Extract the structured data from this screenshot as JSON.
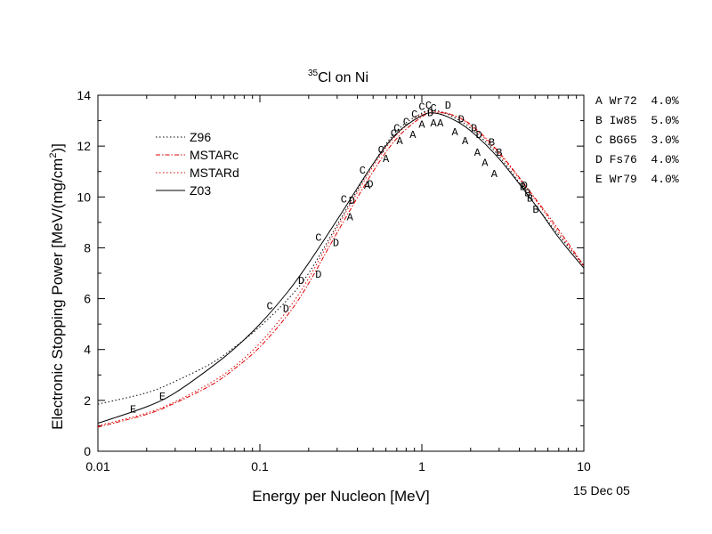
{
  "chart_data": {
    "type": "line",
    "title": {
      "superscript": "35",
      "text": "Cl on Ni"
    },
    "xlabel": "Energy per Nucleon [MeV]",
    "ylabel": {
      "main": "Electronic Stopping Power [MeV/(mg/cm",
      "sup": "2",
      "tail": ")]"
    },
    "xscale": "log",
    "xlim": [
      0.01,
      10
    ],
    "ylim": [
      0,
      14
    ],
    "x_ticks": [
      0.01,
      0.1,
      1,
      10
    ],
    "x_tick_labels": [
      "0.01",
      "0.1",
      "1",
      "10"
    ],
    "y_ticks": [
      0,
      2,
      4,
      6,
      8,
      10,
      12,
      14
    ],
    "y_tick_labels": [
      "0",
      "2",
      "4",
      "6",
      "8",
      "10",
      "12",
      "14"
    ],
    "grid": false,
    "legend_placement": "upper-left",
    "series": [
      {
        "name": "Z96",
        "style": "dotted",
        "color": "#000000",
        "x": [
          0.01,
          0.02,
          0.03,
          0.05,
          0.07,
          0.1,
          0.15,
          0.2,
          0.3,
          0.5,
          0.7,
          1.0,
          1.2,
          1.5,
          2,
          3,
          5,
          7,
          10
        ],
        "y": [
          1.85,
          2.3,
          2.75,
          3.45,
          4.1,
          4.9,
          6.0,
          7.0,
          8.9,
          11.3,
          12.6,
          13.3,
          13.4,
          13.2,
          12.7,
          11.6,
          9.7,
          8.5,
          7.3
        ]
      },
      {
        "name": "MSTARc",
        "style": "dash-dot",
        "color": "#dd0000",
        "x": [
          0.01,
          0.02,
          0.03,
          0.05,
          0.07,
          0.1,
          0.15,
          0.2,
          0.3,
          0.5,
          0.7,
          1.0,
          1.2,
          1.5,
          2,
          3,
          5,
          7,
          10
        ],
        "y": [
          0.95,
          1.45,
          1.9,
          2.6,
          3.25,
          4.1,
          5.4,
          6.6,
          8.6,
          11.0,
          12.3,
          13.15,
          13.3,
          13.25,
          12.85,
          11.75,
          9.95,
          8.7,
          7.3
        ]
      },
      {
        "name": "MSTARd",
        "style": "dotted",
        "color": "#dd0000",
        "x": [
          0.01,
          0.02,
          0.03,
          0.05,
          0.07,
          0.1,
          0.15,
          0.2,
          0.3,
          0.5,
          0.7,
          1.0,
          1.2,
          1.5,
          2,
          3,
          5,
          7,
          10
        ],
        "y": [
          1.0,
          1.5,
          1.95,
          2.7,
          3.35,
          4.25,
          5.6,
          6.8,
          8.8,
          11.2,
          12.45,
          13.25,
          13.35,
          13.25,
          12.8,
          11.7,
          9.9,
          8.6,
          7.25
        ]
      },
      {
        "name": "Z03",
        "style": "solid",
        "color": "#000000",
        "x": [
          0.01,
          0.02,
          0.03,
          0.05,
          0.07,
          0.1,
          0.15,
          0.2,
          0.3,
          0.5,
          0.7,
          1.0,
          1.2,
          1.5,
          2,
          3,
          5,
          7,
          10
        ],
        "y": [
          1.1,
          1.75,
          2.3,
          3.3,
          4.05,
          5.0,
          6.3,
          7.4,
          9.1,
          11.3,
          12.5,
          13.2,
          13.3,
          13.1,
          12.6,
          11.5,
          9.7,
          8.4,
          7.2
        ]
      }
    ],
    "points": [
      {
        "label": "E",
        "x": 0.0165,
        "y": 1.7
      },
      {
        "label": "E",
        "x": 0.025,
        "y": 2.2
      },
      {
        "label": "C",
        "x": 0.115,
        "y": 5.75
      },
      {
        "label": "D",
        "x": 0.145,
        "y": 5.65
      },
      {
        "label": "D",
        "x": 0.18,
        "y": 6.75
      },
      {
        "label": "D",
        "x": 0.23,
        "y": 7.0
      },
      {
        "label": "C",
        "x": 0.23,
        "y": 8.45
      },
      {
        "label": "D",
        "x": 0.295,
        "y": 8.25
      },
      {
        "label": "C",
        "x": 0.33,
        "y": 9.95
      },
      {
        "label": "A",
        "x": 0.36,
        "y": 9.25
      },
      {
        "label": "D",
        "x": 0.37,
        "y": 9.9
      },
      {
        "label": "C",
        "x": 0.43,
        "y": 11.1
      },
      {
        "label": "A",
        "x": 0.46,
        "y": 10.5
      },
      {
        "label": "D",
        "x": 0.48,
        "y": 10.55
      },
      {
        "label": "C",
        "x": 0.56,
        "y": 11.9
      },
      {
        "label": "A",
        "x": 0.6,
        "y": 11.55
      },
      {
        "label": "C",
        "x": 0.67,
        "y": 12.55
      },
      {
        "label": "C",
        "x": 0.7,
        "y": 12.75
      },
      {
        "label": "A",
        "x": 0.73,
        "y": 12.25
      },
      {
        "label": "C",
        "x": 0.8,
        "y": 13.0
      },
      {
        "label": "A",
        "x": 0.88,
        "y": 12.5
      },
      {
        "label": "C",
        "x": 0.9,
        "y": 13.3
      },
      {
        "label": "C",
        "x": 1.0,
        "y": 13.6
      },
      {
        "label": "A",
        "x": 1.0,
        "y": 12.9
      },
      {
        "label": "C",
        "x": 1.1,
        "y": 13.65
      },
      {
        "label": "C",
        "x": 1.18,
        "y": 13.55
      },
      {
        "label": "A",
        "x": 1.18,
        "y": 12.95
      },
      {
        "label": "D",
        "x": 1.13,
        "y": 13.35
      },
      {
        "label": "A",
        "x": 1.3,
        "y": 12.95
      },
      {
        "label": "D",
        "x": 1.45,
        "y": 13.65
      },
      {
        "label": "A",
        "x": 1.6,
        "y": 12.6
      },
      {
        "label": "D",
        "x": 1.75,
        "y": 13.1
      },
      {
        "label": "A",
        "x": 1.85,
        "y": 12.25
      },
      {
        "label": "D",
        "x": 2.1,
        "y": 12.75
      },
      {
        "label": "A",
        "x": 2.2,
        "y": 11.8
      },
      {
        "label": "D",
        "x": 2.25,
        "y": 12.5
      },
      {
        "label": "A",
        "x": 2.45,
        "y": 11.4
      },
      {
        "label": "B",
        "x": 2.7,
        "y": 12.2
      },
      {
        "label": "A",
        "x": 2.8,
        "y": 10.95
      },
      {
        "label": "B",
        "x": 3.0,
        "y": 11.8
      },
      {
        "label": "B",
        "x": 4.2,
        "y": 10.45
      },
      {
        "label": "D",
        "x": 4.3,
        "y": 10.5
      },
      {
        "label": "B",
        "x": 4.5,
        "y": 10.2
      },
      {
        "label": "B",
        "x": 4.65,
        "y": 10.0
      },
      {
        "label": "B",
        "x": 5.05,
        "y": 9.55
      }
    ],
    "data_sources": [
      {
        "text": "A Wr72  4.0%"
      },
      {
        "text": "B Iw85  5.0%"
      },
      {
        "text": "C BG65  3.0%"
      },
      {
        "text": "D Fs76  4.0%"
      },
      {
        "text": "E Wr79  4.0%"
      }
    ]
  },
  "date_stamp": "15 Dec 05"
}
